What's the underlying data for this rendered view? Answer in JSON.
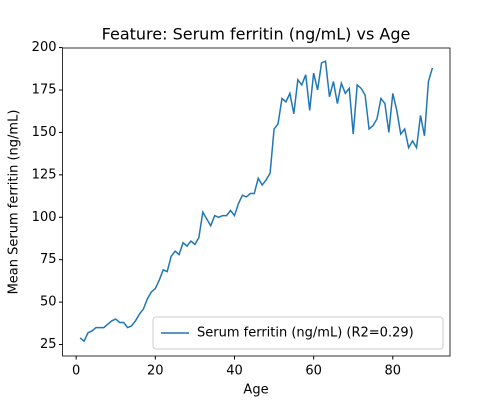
{
  "chart_data": {
    "type": "line",
    "title": "Feature: Serum ferritin (ng/mL) vs Age",
    "x_label": "Age",
    "y_label": "Mean Serum ferritin (ng/mL)",
    "x": [
      1,
      2,
      3,
      4,
      5,
      6,
      7,
      8,
      9,
      10,
      11,
      12,
      13,
      14,
      15,
      16,
      17,
      18,
      19,
      20,
      21,
      22,
      23,
      24,
      25,
      26,
      27,
      28,
      29,
      30,
      31,
      32,
      33,
      34,
      35,
      36,
      37,
      38,
      39,
      40,
      41,
      42,
      43,
      44,
      45,
      46,
      47,
      48,
      49,
      50,
      51,
      52,
      53,
      54,
      55,
      56,
      57,
      58,
      59,
      60,
      61,
      62,
      63,
      64,
      65,
      66,
      67,
      68,
      69,
      70,
      71,
      72,
      73,
      74,
      75,
      76,
      77,
      78,
      79,
      80,
      81,
      82,
      83,
      84,
      85,
      86,
      87,
      88,
      89,
      90
    ],
    "series": [
      {
        "name": "Serum ferritin (ng/mL) (R2=0.29)",
        "color": "#1f77b4",
        "values": [
          29,
          27,
          32,
          33,
          35,
          35,
          35,
          37,
          39,
          40,
          38,
          38,
          35,
          36,
          39,
          43,
          46,
          52,
          56,
          58,
          63,
          69,
          68,
          77,
          80,
          78,
          85,
          83,
          86,
          84,
          88,
          103,
          99,
          95,
          101,
          100,
          101,
          101,
          104,
          101,
          108,
          113,
          112,
          114,
          114,
          123,
          119,
          122,
          126,
          152,
          155,
          170,
          168,
          173,
          161,
          181,
          178,
          184,
          163,
          185,
          175,
          191,
          192,
          171,
          180,
          167,
          179,
          173,
          176,
          149,
          178,
          176,
          172,
          152,
          154,
          158,
          170,
          167,
          150,
          173,
          163,
          149,
          152,
          141,
          145,
          141,
          160,
          148,
          180,
          188
        ]
      }
    ],
    "xlim": [
      -3.45,
      94.45
    ],
    "ylim": [
      18.25,
      199.75
    ],
    "xticks": [
      0,
      20,
      40,
      60,
      80
    ],
    "yticks": [
      25,
      50,
      75,
      100,
      125,
      150,
      175,
      200
    ],
    "legend": "lower right"
  }
}
